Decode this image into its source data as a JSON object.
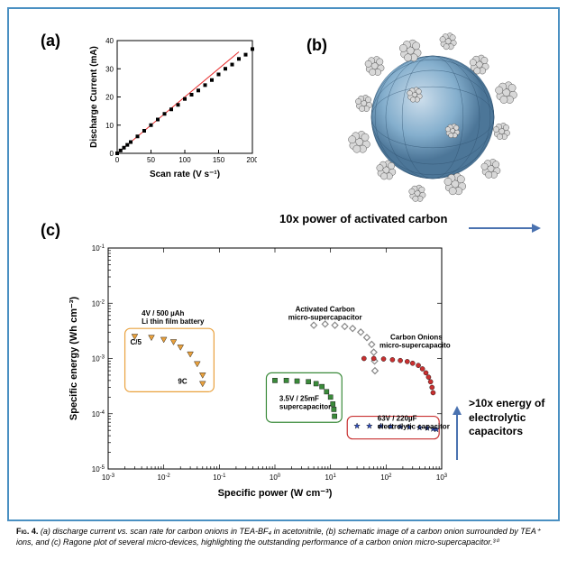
{
  "labels": {
    "a": "(a)",
    "b": "(b)",
    "c": "(c)"
  },
  "chart_a": {
    "type": "scatter",
    "xlabel": "Scan rate (V s⁻¹)",
    "ylabel": "Discharge Current (mA)",
    "xlim": [
      0,
      200
    ],
    "ylim": [
      0,
      40
    ],
    "xtick_step": 50,
    "ytick_step": 10,
    "label_fontsize": 10,
    "tick_fontsize": 8,
    "background_color": "#ffffff",
    "marker_color": "#000000",
    "marker_shape": "square",
    "marker_size": 4,
    "fit_line_color": "#e83030",
    "fit_line_width": 1,
    "x": [
      0,
      5,
      10,
      15,
      20,
      30,
      40,
      50,
      60,
      70,
      80,
      90,
      100,
      110,
      120,
      130,
      140,
      150,
      160,
      170,
      180,
      190,
      200
    ],
    "y": [
      0,
      1,
      2,
      3,
      4,
      6,
      8,
      10,
      12,
      14,
      15.6,
      17.2,
      19.3,
      20.8,
      22.3,
      24.2,
      26,
      28,
      30,
      31.5,
      33.5,
      35,
      37
    ],
    "fit_x": [
      0,
      180
    ],
    "fit_y": [
      0,
      36
    ]
  },
  "image_b": {
    "type": "schematic",
    "description": "carbon onion sphere with TEA+ ion clusters",
    "sphere_color_outer": "#7aa8c9",
    "sphere_color_inner": "#3d6a8f",
    "ion_color": "#d8d8d8",
    "ion_stroke": "#555555"
  },
  "annotations": {
    "power10x": "10x power of activated carbon",
    "energy10x": ">10x energy of electrolytic capacitors",
    "arrow_color": "#4a72b0"
  },
  "chart_c": {
    "type": "ragone",
    "xlabel": "Specific power (W cm⁻³)",
    "ylabel": "Specific energy (Wh cm⁻³)",
    "xlim_log": [
      -3,
      3
    ],
    "ylim_log": [
      -5,
      -1
    ],
    "background_color": "#ffffff",
    "grid": false,
    "series": {
      "li_battery": {
        "label": "4V / 500 µAh Li thin film battery",
        "color": "#e9a13d",
        "marker": "triangle-down",
        "box_color": "#e9a13d",
        "rate_top": "C/5",
        "rate_bot": "9C",
        "x": [
          0.003,
          0.006,
          0.01,
          0.015,
          0.02,
          0.03,
          0.04,
          0.05,
          0.05
        ],
        "y": [
          0.0025,
          0.0024,
          0.0022,
          0.002,
          0.0016,
          0.0012,
          0.0008,
          0.0005,
          0.00035
        ]
      },
      "activated_carbon": {
        "label": "Activated Carbon micro-supercapacitor",
        "color": "#888888",
        "marker": "diamond",
        "x": [
          5,
          8,
          12,
          18,
          25,
          35,
          45,
          55,
          60,
          62,
          63
        ],
        "y": [
          0.004,
          0.0042,
          0.004,
          0.0038,
          0.0035,
          0.003,
          0.0024,
          0.0018,
          0.0013,
          0.0009,
          0.0006
        ]
      },
      "carbon_onions": {
        "label": "Carbon Onions micro-supercapacitor",
        "color": "#c83030",
        "marker": "circle",
        "x": [
          40,
          60,
          90,
          130,
          180,
          240,
          300,
          380,
          450,
          520,
          580,
          630,
          670,
          700
        ],
        "y": [
          0.001,
          0.001,
          0.00098,
          0.00095,
          0.00092,
          0.00088,
          0.00082,
          0.00075,
          0.00065,
          0.00055,
          0.00046,
          0.00038,
          0.0003,
          0.00024
        ]
      },
      "supercap_35v": {
        "label": "3.5V / 25mF supercapacitor",
        "color": "#3a8a3a",
        "marker": "square",
        "box_color": "#3a8a3a",
        "x": [
          1.0,
          1.6,
          2.5,
          4.0,
          5.5,
          7.0,
          8.5,
          10,
          11,
          11.5,
          11.8
        ],
        "y": [
          0.0004,
          0.0004,
          0.00039,
          0.00038,
          0.00035,
          0.00031,
          0.00025,
          0.0002,
          0.00015,
          0.00012,
          9e-05
        ]
      },
      "electrolytic": {
        "label": "63V / 220µF electrolytic capacitor",
        "color": "#3050c8",
        "marker": "star",
        "box_color": "#c83030",
        "x": [
          30,
          50,
          80,
          120,
          180,
          260,
          400,
          550,
          700,
          800
        ],
        "y": [
          6e-05,
          6e-05,
          6e-05,
          5.9e-05,
          5.8e-05,
          5.7e-05,
          5.6e-05,
          5.5e-05,
          5.3e-05,
          5.2e-05
        ]
      }
    }
  },
  "caption": {
    "fig_label": "Fig. 4.",
    "text": "(a) discharge current vs. scan rate for carbon onions in TEA-BF₄ in acetonitrile, (b) schematic image of a carbon onion surrounded by TEA⁺ ions, and (c) Ragone plot of several micro-devices, highlighting the outstanding performance of a carbon onion micro-supercapacitor.³⁰"
  }
}
